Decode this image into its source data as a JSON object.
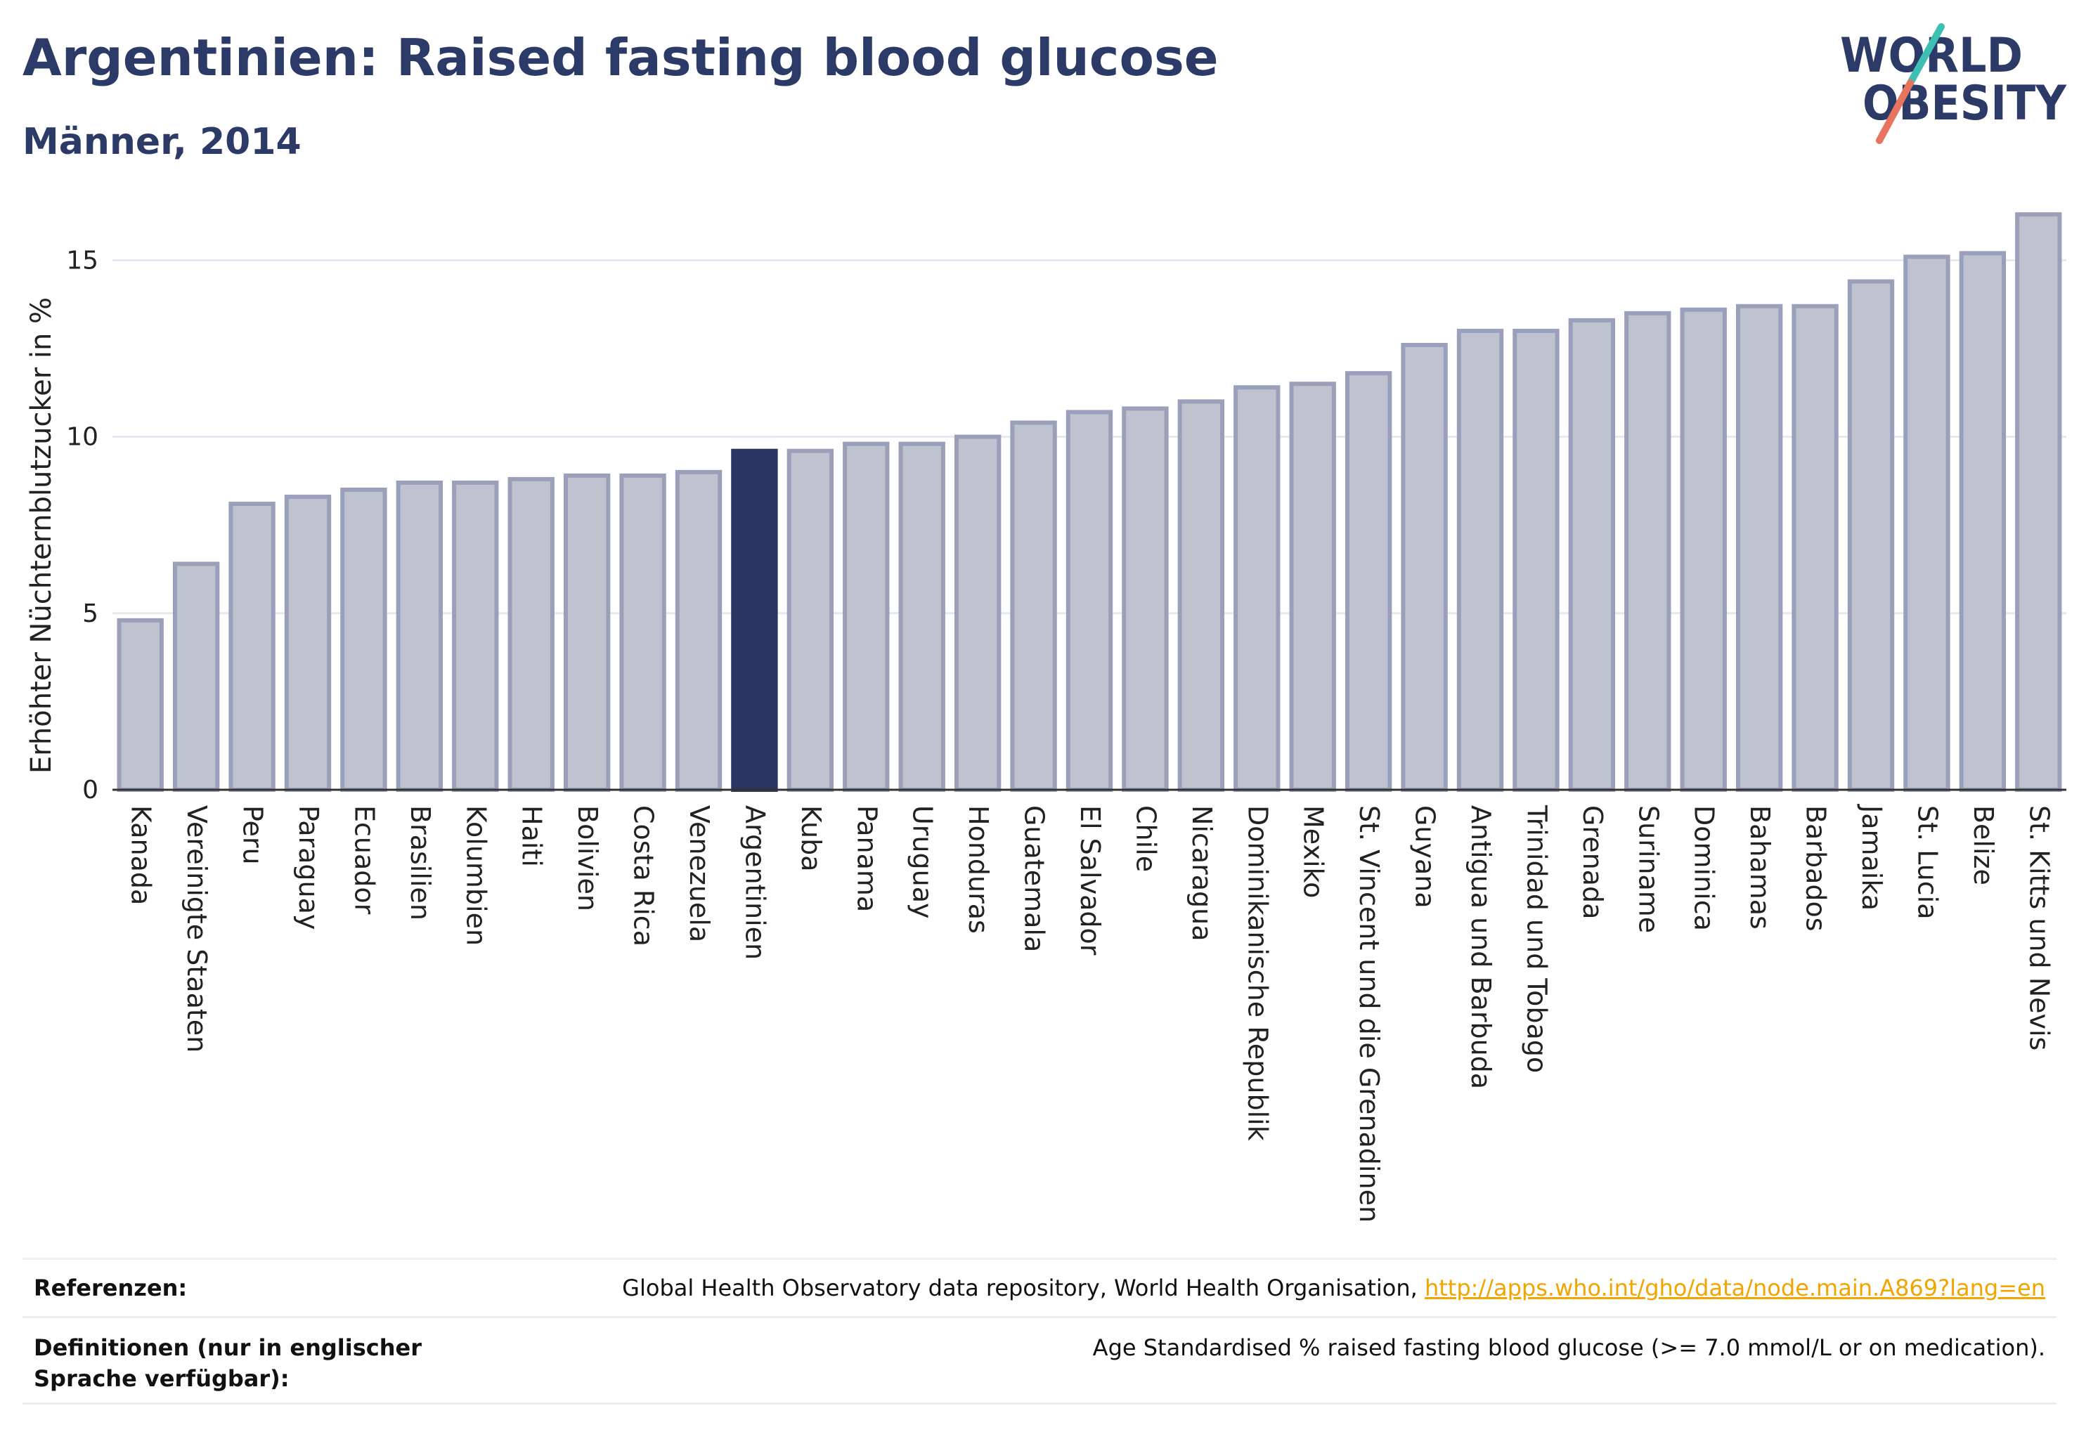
{
  "header": {
    "title": "Argentinien: Raised fasting blood glucose",
    "subtitle": "Männer, 2014"
  },
  "logo": {
    "line1": "WORLD",
    "line2": "OBESITY"
  },
  "colors": {
    "highlight": "#2b3561",
    "bar": "#bfc2cf",
    "bar_border": "#9a9fba",
    "title": "#2b3a67",
    "link": "#f0a500"
  },
  "chart_data": {
    "type": "bar",
    "title": "Argentinien: Raised fasting blood glucose",
    "subtitle": "Männer, 2014",
    "xlabel": "",
    "ylabel": "Erhöhter Nüchternblutzucker in %",
    "ylim": [
      0,
      16.8
    ],
    "yticks": [
      0,
      5,
      10,
      15
    ],
    "grid": true,
    "highlight": "Argentinien",
    "categories": [
      "Kanada",
      "Vereinigte Staaten",
      "Peru",
      "Paraguay",
      "Ecuador",
      "Brasilien",
      "Kolumbien",
      "Haiti",
      "Bolivien",
      "Costa Rica",
      "Venezuela",
      "Argentinien",
      "Kuba",
      "Panama",
      "Uruguay",
      "Honduras",
      "Guatemala",
      "El Salvador",
      "Chile",
      "Nicaragua",
      "Dominikanische Republik",
      "Mexiko",
      "St. Vincent und die Grenadinen",
      "Guyana",
      "Antigua und Barbuda",
      "Trinidad und Tobago",
      "Grenada",
      "Suriname",
      "Dominica",
      "Bahamas",
      "Barbados",
      "Jamaika",
      "St. Lucia",
      "Belize",
      "St. Kitts und Nevis"
    ],
    "values": [
      4.8,
      6.4,
      8.1,
      8.3,
      8.5,
      8.7,
      8.7,
      8.8,
      8.9,
      8.9,
      9.0,
      9.6,
      9.6,
      9.8,
      9.8,
      10.0,
      10.4,
      10.7,
      10.8,
      11.0,
      11.4,
      11.5,
      11.8,
      12.6,
      13.0,
      13.0,
      13.3,
      13.5,
      13.6,
      13.7,
      13.7,
      14.4,
      15.1,
      15.2,
      16.3
    ]
  },
  "footer": {
    "references_label": "Referenzen:",
    "references_text": "Global Health Observatory data repository, World Health Organisation, ",
    "references_link": "http://apps.who.int/gho/data/node.main.A869?lang=en",
    "definitions_label": "Definitionen (nur in englischer Sprache verfügbar):",
    "definitions_text": "Age Standardised % raised fasting blood glucose (>= 7.0 mmol/L or on medication)."
  }
}
